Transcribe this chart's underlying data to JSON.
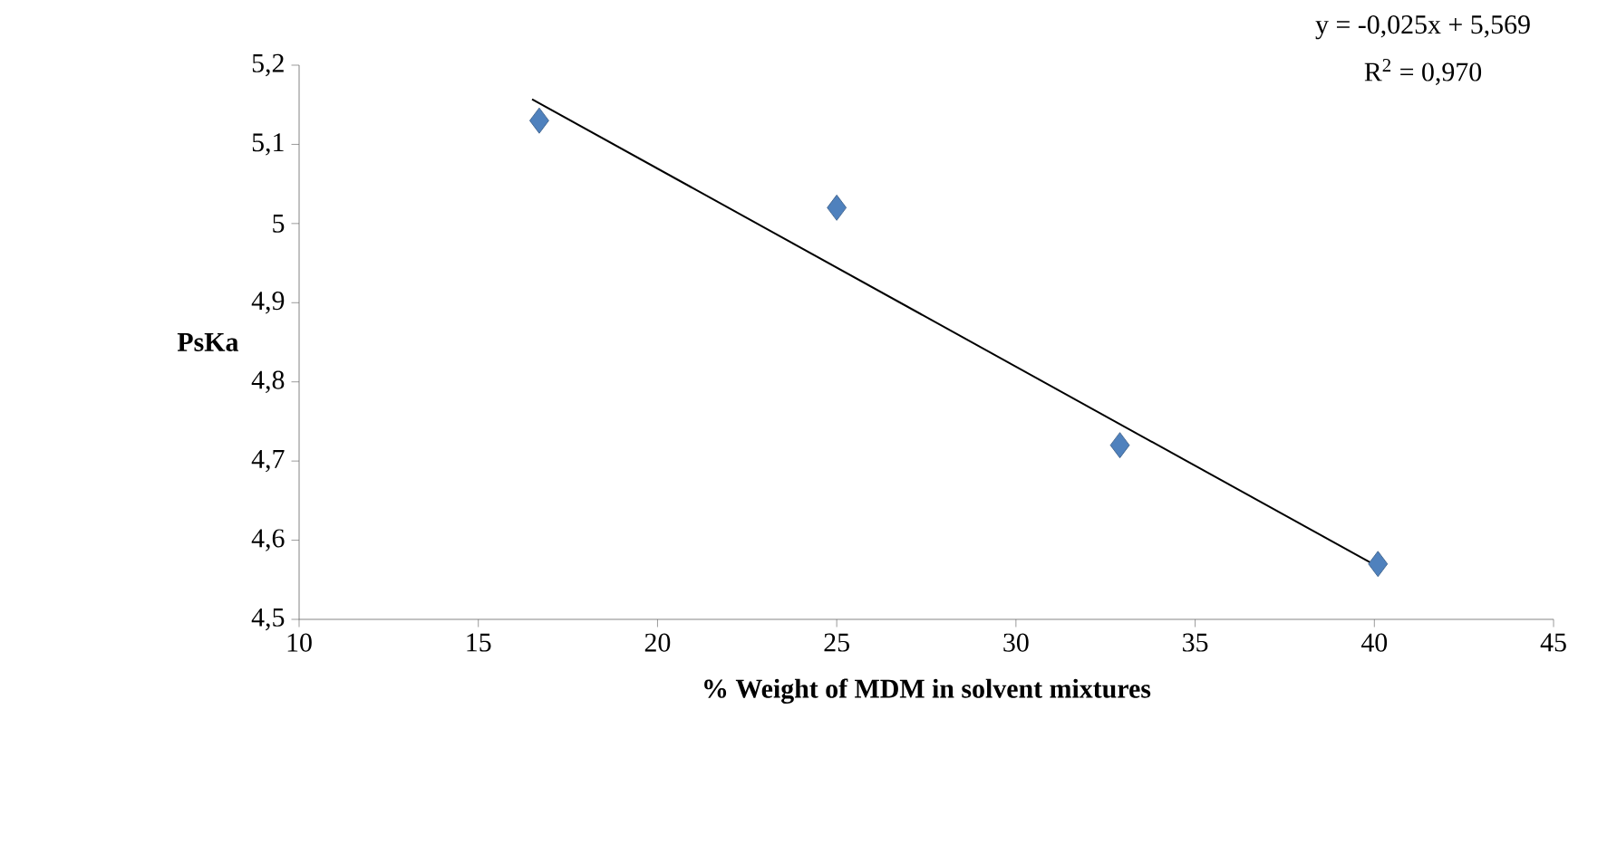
{
  "chart_data": {
    "type": "scatter",
    "xlabel": "% Weight  of  MDM in solvent mixtures",
    "ylabel": "PsKa",
    "annotations": [
      "y = -0,025x + 5,569",
      "R$^{2}$ = 0,970"
    ],
    "series": [
      {
        "marker": "diamond",
        "color": "#4f81bd",
        "x": [
          16.7,
          25.0,
          32.9,
          40.1
        ],
        "values": [
          5.13,
          5.02,
          4.72,
          4.57
        ]
      },
      {
        "type": "line",
        "marker": "none",
        "color": "#000000",
        "x": [
          16.5,
          40.0
        ],
        "values": [
          5.157,
          4.569
        ]
      }
    ],
    "xlim": [
      10,
      45
    ],
    "ylim": [
      4.5,
      5.2
    ],
    "xticks": [
      10,
      15,
      20,
      25,
      30,
      35,
      40,
      45
    ],
    "yticks": [
      {
        "value": 4.5,
        "label": "4,5"
      },
      {
        "value": 4.6,
        "label": "4,6"
      },
      {
        "value": 4.7,
        "label": "4,7"
      },
      {
        "value": 4.8,
        "label": "4,8"
      },
      {
        "value": 4.9,
        "label": "4,9"
      },
      {
        "value": 5.0,
        "label": "5"
      },
      {
        "value": 5.1,
        "label": "5,1"
      },
      {
        "value": 5.2,
        "label": "5,2"
      }
    ]
  }
}
